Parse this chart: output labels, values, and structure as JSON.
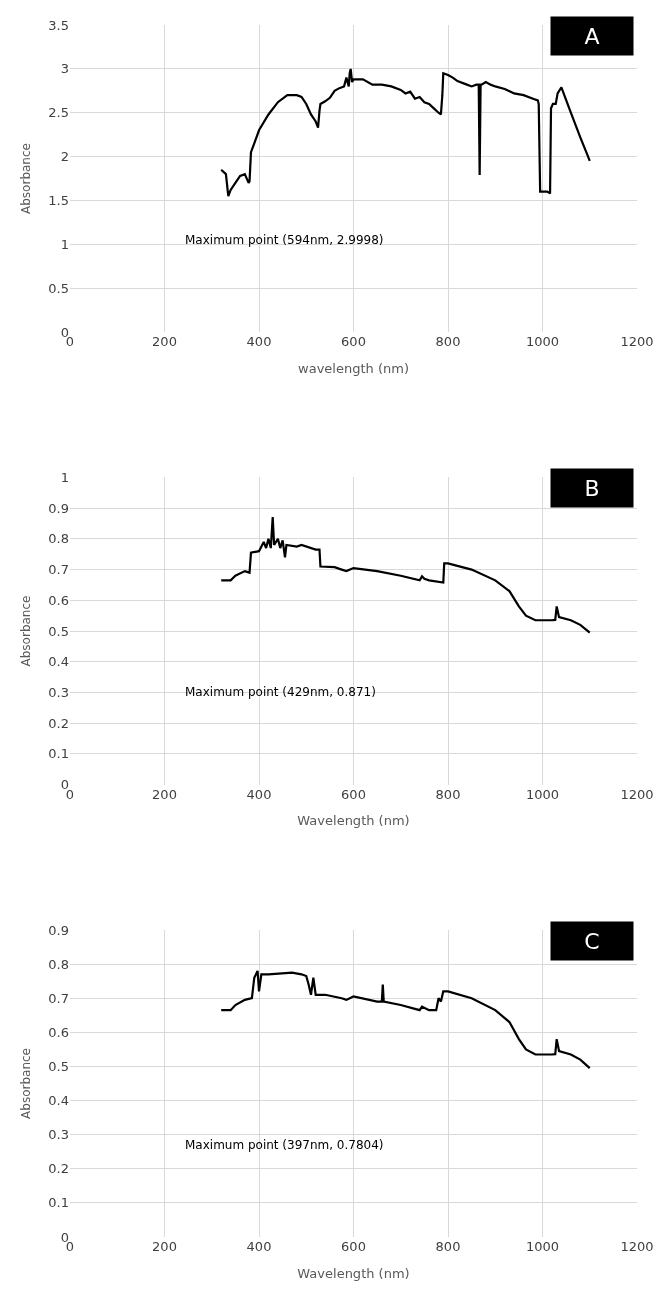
{
  "chart_data": [
    {
      "type": "line",
      "xlabel": "wavelength (nm)",
      "ylabel": "Absorbance",
      "xlim": [
        0,
        1200
      ],
      "xticks": [
        0,
        200,
        400,
        600,
        800,
        1000,
        1200
      ],
      "ylim": [
        0,
        3.5
      ],
      "yticks": [
        0,
        0.5,
        1,
        1.5,
        2,
        2.5,
        3,
        3.5
      ],
      "grid": true,
      "annotations": [
        "A",
        "Maximum point (594nm, 2.9998)"
      ],
      "series": [
        {
          "color": "#000000",
          "x": [
            320,
            330,
            335,
            340,
            350,
            360,
            370,
            378,
            380,
            383,
            390,
            400,
            420,
            440,
            460,
            480,
            490,
            500,
            510,
            520,
            525,
            528,
            530,
            540,
            550,
            560,
            570,
            580,
            585,
            590,
            592,
            594,
            597,
            600,
            620,
            640,
            660,
            680,
            700,
            710,
            720,
            730,
            740,
            750,
            760,
            770,
            780,
            785,
            788,
            790,
            800,
            810,
            820,
            840,
            850,
            860,
            865,
            867,
            869,
            871,
            880,
            890,
            900,
            920,
            940,
            960,
            980,
            990,
            992,
            995,
            1000,
            1010,
            1016,
            1018,
            1022,
            1028,
            1032,
            1040,
            1060,
            1080,
            1095,
            1100
          ],
          "values": [
            1.85,
            1.8,
            1.55,
            1.62,
            1.7,
            1.78,
            1.8,
            1.7,
            1.72,
            2.05,
            2.15,
            2.3,
            2.48,
            2.62,
            2.7,
            2.7,
            2.68,
            2.6,
            2.48,
            2.4,
            2.33,
            2.52,
            2.6,
            2.63,
            2.67,
            2.75,
            2.78,
            2.8,
            2.9,
            2.8,
            2.95,
            3.0,
            2.85,
            2.88,
            2.88,
            2.82,
            2.82,
            2.8,
            2.76,
            2.72,
            2.74,
            2.66,
            2.68,
            2.62,
            2.6,
            2.55,
            2.5,
            2.48,
            2.7,
            2.95,
            2.93,
            2.9,
            2.86,
            2.82,
            2.8,
            2.82,
            2.82,
            1.79,
            2.82,
            2.82,
            2.85,
            2.82,
            2.8,
            2.77,
            2.72,
            2.7,
            2.66,
            2.64,
            2.6,
            1.6,
            1.6,
            1.6,
            1.58,
            2.55,
            2.6,
            2.6,
            2.72,
            2.79,
            2.5,
            2.22,
            2.02,
            1.95
          ]
        }
      ]
    },
    {
      "type": "line",
      "xlabel": "Wavelength (nm)",
      "ylabel": "Absorbance",
      "xlim": [
        0,
        1200
      ],
      "xticks": [
        0,
        200,
        400,
        600,
        800,
        1000,
        1200
      ],
      "ylim": [
        0,
        1
      ],
      "yticks": [
        0,
        0.1,
        0.2,
        0.3,
        0.4,
        0.5,
        0.6,
        0.7,
        0.8,
        0.9,
        1
      ],
      "grid": true,
      "annotations": [
        "B",
        "Maximum point (429nm, 0.871)"
      ],
      "series": [
        {
          "color": "#000000",
          "x": [
            320,
            340,
            350,
            370,
            380,
            383,
            400,
            410,
            415,
            420,
            425,
            429,
            432,
            440,
            445,
            450,
            455,
            458,
            480,
            490,
            520,
            528,
            530,
            560,
            575,
            585,
            600,
            650,
            700,
            740,
            745,
            750,
            760,
            790,
            792,
            800,
            850,
            900,
            930,
            950,
            965,
            985,
            1020,
            1027,
            1030,
            1035,
            1060,
            1080,
            1100
          ],
          "values": [
            0.665,
            0.665,
            0.68,
            0.695,
            0.69,
            0.755,
            0.76,
            0.79,
            0.77,
            0.8,
            0.77,
            0.871,
            0.78,
            0.8,
            0.77,
            0.795,
            0.74,
            0.78,
            0.775,
            0.78,
            0.765,
            0.765,
            0.71,
            0.708,
            0.7,
            0.695,
            0.705,
            0.695,
            0.68,
            0.665,
            0.678,
            0.67,
            0.665,
            0.658,
            0.72,
            0.72,
            0.7,
            0.665,
            0.63,
            0.58,
            0.55,
            0.535,
            0.535,
            0.536,
            0.58,
            0.545,
            0.535,
            0.52,
            0.495
          ]
        }
      ]
    },
    {
      "type": "line",
      "xlabel": "Wavelength (nm)",
      "ylabel": "Absorbance",
      "xlim": [
        0,
        1200
      ],
      "xticks": [
        0,
        200,
        400,
        600,
        800,
        1000,
        1200
      ],
      "ylim": [
        0,
        0.9
      ],
      "yticks": [
        0,
        0.1,
        0.2,
        0.3,
        0.4,
        0.5,
        0.6,
        0.7,
        0.8,
        0.9
      ],
      "grid": true,
      "annotations": [
        "C",
        "Maximum point (397nm, 0.7804)"
      ],
      "series": [
        {
          "color": "#000000",
          "x": [
            320,
            340,
            350,
            370,
            385,
            390,
            397,
            400,
            405,
            420,
            470,
            490,
            500,
            505,
            510,
            515,
            520,
            540,
            575,
            585,
            600,
            650,
            660,
            662,
            664,
            700,
            740,
            745,
            760,
            775,
            780,
            785,
            790,
            800,
            850,
            900,
            930,
            950,
            965,
            985,
            1020,
            1027,
            1030,
            1035,
            1060,
            1080,
            1100
          ],
          "values": [
            0.665,
            0.665,
            0.68,
            0.695,
            0.7,
            0.76,
            0.78,
            0.72,
            0.77,
            0.77,
            0.775,
            0.77,
            0.765,
            0.74,
            0.71,
            0.76,
            0.71,
            0.71,
            0.7,
            0.695,
            0.705,
            0.69,
            0.69,
            0.74,
            0.69,
            0.68,
            0.665,
            0.675,
            0.665,
            0.665,
            0.7,
            0.69,
            0.72,
            0.72,
            0.7,
            0.665,
            0.63,
            0.58,
            0.55,
            0.535,
            0.535,
            0.536,
            0.58,
            0.545,
            0.535,
            0.52,
            0.495
          ]
        }
      ]
    }
  ]
}
